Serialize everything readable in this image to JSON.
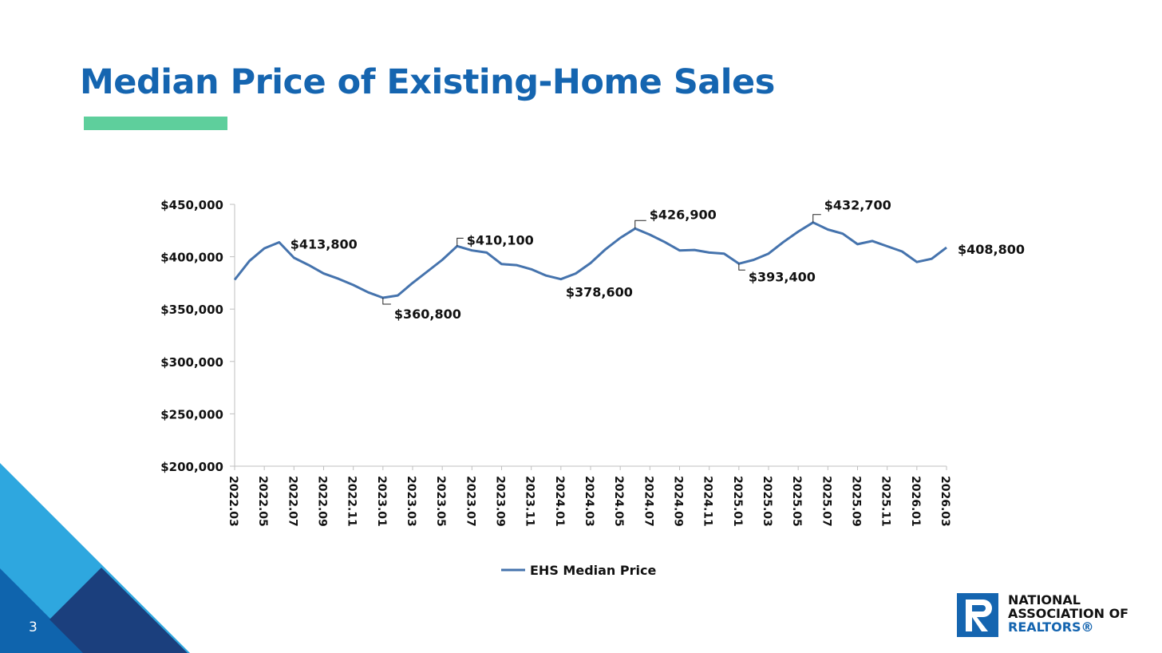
{
  "slide": {
    "title": "Median Price of Existing-Home Sales",
    "page_number": "3"
  },
  "logo": {
    "line1": "NATIONAL",
    "line2": "ASSOCIATION OF",
    "line3": "REALTORS®"
  },
  "colors": {
    "title": "#1565b0",
    "accent": "#5ecf9c",
    "line": "#4573ad"
  },
  "chart_data": {
    "type": "line",
    "title": "",
    "xlabel": "",
    "ylabel": "",
    "ylim": [
      200000,
      450000
    ],
    "yticks": [
      200000,
      250000,
      300000,
      350000,
      400000,
      450000
    ],
    "ytick_labels": [
      "$200,000",
      "$250,000",
      "$300,000",
      "$350,000",
      "$400,000",
      "$450,000"
    ],
    "x": [
      "2022.03",
      "2022.04",
      "2022.05",
      "2022.06",
      "2022.07",
      "2022.08",
      "2022.09",
      "2022.10",
      "2022.11",
      "2022.12",
      "2023.01",
      "2023.02",
      "2023.03",
      "2023.04",
      "2023.05",
      "2023.06",
      "2023.07",
      "2023.08",
      "2023.09",
      "2023.10",
      "2023.11",
      "2023.12",
      "2024.01",
      "2024.02",
      "2024.03",
      "2024.04",
      "2024.05",
      "2024.06",
      "2024.07",
      "2024.08",
      "2024.09",
      "2024.10",
      "2024.11",
      "2024.12",
      "2025.01",
      "2025.02",
      "2025.03",
      "2025.04",
      "2025.05",
      "2025.06",
      "2025.07",
      "2025.08",
      "2025.09",
      "2025.10",
      "2025.11",
      "2025.12",
      "2026.01",
      "2026.02",
      "2026.03"
    ],
    "xtick_labels": [
      "2022.03",
      "2022.05",
      "2022.07",
      "2022.09",
      "2022.11",
      "2023.01",
      "2023.03",
      "2023.05",
      "2023.07",
      "2023.09",
      "2023.11",
      "2024.01",
      "2024.03",
      "2024.05",
      "2024.07",
      "2024.09",
      "2024.11",
      "2025.01",
      "2025.03",
      "2025.05",
      "2025.07",
      "2025.09",
      "2025.11",
      "2026.01",
      "2026.03"
    ],
    "series": [
      {
        "name": "EHS Median Price",
        "values": [
          378000,
          396000,
          408000,
          413800,
          399000,
          392000,
          384000,
          379000,
          373000,
          366000,
          360800,
          363000,
          375000,
          386000,
          397000,
          410100,
          406000,
          404000,
          393000,
          392000,
          388000,
          382000,
          378600,
          384000,
          394000,
          407000,
          418000,
          426900,
          421000,
          414000,
          406000,
          406500,
          404000,
          403000,
          393400,
          397000,
          403000,
          414000,
          424000,
          432700,
          426000,
          422000,
          412000,
          415000,
          410000,
          405000,
          395000,
          398000,
          408800
        ]
      }
    ],
    "annotations": [
      {
        "x": "2022.06",
        "label": "$413,800"
      },
      {
        "x": "2023.01",
        "label": "$360,800"
      },
      {
        "x": "2023.06",
        "label": "$410,100"
      },
      {
        "x": "2024.01",
        "label": "$378,600"
      },
      {
        "x": "2024.06",
        "label": "$426,900"
      },
      {
        "x": "2025.01",
        "label": "$393,400"
      },
      {
        "x": "2025.06",
        "label": "$432,700"
      },
      {
        "x": "2026.03",
        "label": "$408,800"
      }
    ],
    "legend": "bottom",
    "grid": false
  }
}
